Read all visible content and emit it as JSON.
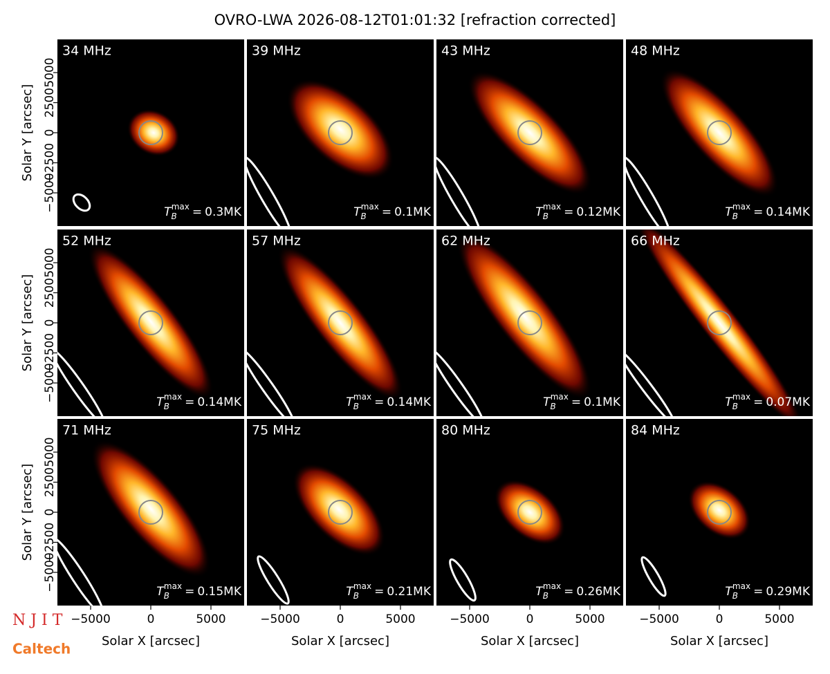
{
  "chart_data": {
    "type": "image-grid",
    "title": "OVRO-LWA 2026-08-12T01:01:32 [refraction corrected]",
    "x_label": "Solar X [arcsec]",
    "y_label": "Solar Y [arcsec]",
    "categories": [
      "34 MHz",
      "39 MHz",
      "43 MHz",
      "48 MHz",
      "52 MHz",
      "57 MHz",
      "62 MHz",
      "66 MHz",
      "71 MHz",
      "75 MHz",
      "80 MHz",
      "84 MHz"
    ],
    "values": [
      0.3,
      0.1,
      0.12,
      0.14,
      0.14,
      0.14,
      0.1,
      0.07,
      0.15,
      0.21,
      0.26,
      0.29
    ],
    "value_labels": [
      "0.3MK",
      "0.1MK",
      "0.12MK",
      "0.14MK",
      "0.14MK",
      "0.14MK",
      "0.1MK",
      "0.07MK",
      "0.15MK",
      "0.21MK",
      "0.26MK",
      "0.29MK"
    ],
    "tb_symbol": {
      "base": "T",
      "sub": "B",
      "sup": "max",
      "relation": "="
    },
    "xlim": [
      -7760,
      7760
    ],
    "ylim": [
      -7760,
      7760
    ],
    "xticks": [
      {
        "value": -5000,
        "label": "−5000"
      },
      0,
      5000
    ],
    "yticks": [
      {
        "value": -5000,
        "label": "−5000"
      },
      {
        "value": -2500,
        "label": "−2500"
      },
      0,
      2500,
      5000
    ],
    "logos": [
      "N J I T",
      "Caltech"
    ]
  }
}
